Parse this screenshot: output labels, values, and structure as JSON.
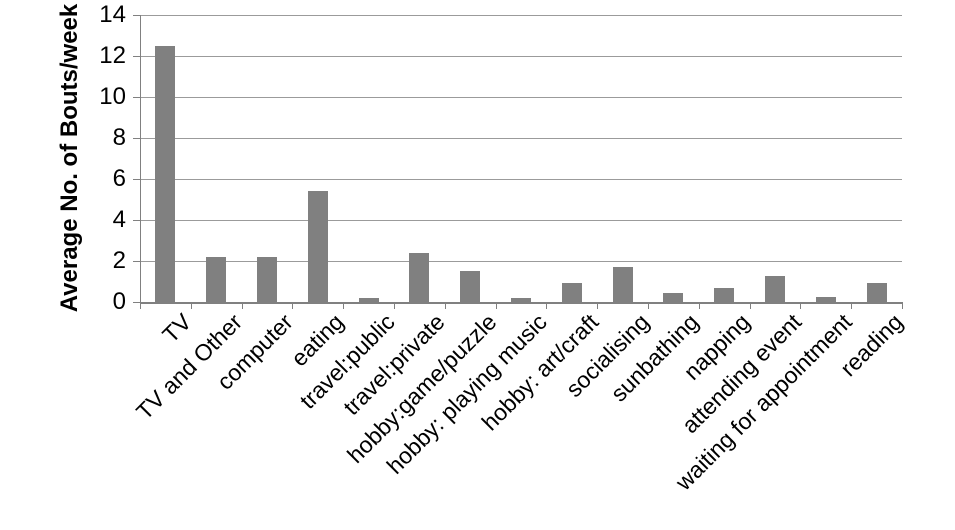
{
  "chart_data": {
    "type": "bar",
    "title": "",
    "ylabel": "Average No. of Bouts/week",
    "xlabel": "",
    "ylim": [
      0,
      14
    ],
    "ytick_interval": 2,
    "yticks": [
      0,
      2,
      4,
      6,
      8,
      10,
      12,
      14
    ],
    "categories": [
      "TV",
      "TV and Other",
      "computer",
      "eating",
      "travel:public",
      "travel:private",
      "hobby:game/puzzle",
      "hobby: playing music",
      "hobby: art/craft",
      "socialising",
      "sunbathing",
      "napping",
      "attending event",
      "waiting for appointment",
      "reading"
    ],
    "values": [
      12.5,
      2.2,
      2.2,
      5.4,
      0.2,
      2.4,
      1.5,
      0.2,
      0.95,
      1.7,
      0.45,
      0.7,
      1.25,
      0.25,
      0.95
    ],
    "grid": true,
    "legend": false,
    "colors": {
      "bar": "#808080",
      "gridline": "#9b9b9b",
      "axis": "#808080",
      "text": "#000000",
      "background": "#ffffff"
    }
  }
}
